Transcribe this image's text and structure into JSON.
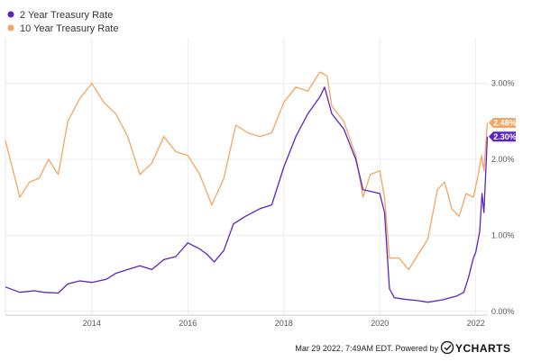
{
  "chart_data": {
    "type": "line",
    "legend_position": "top-left",
    "grid": true,
    "xlim": [
      2012.2,
      2022.25
    ],
    "ylim": [
      -0.05,
      3.6
    ],
    "x_ticks": [
      2014,
      2016,
      2018,
      2020,
      2022
    ],
    "x_tick_labels": [
      "2014",
      "2016",
      "2018",
      "2020",
      "2022"
    ],
    "y_ticks": [
      0,
      1,
      2,
      3
    ],
    "y_tick_labels": [
      "0.00%",
      "1.00%",
      "2.00%",
      "3.00%"
    ],
    "series": [
      {
        "name": "2 Year Treasury Rate",
        "color": "#5b24c0",
        "end_label": "2.30%",
        "points": [
          [
            2012.2,
            0.32
          ],
          [
            2012.5,
            0.25
          ],
          [
            2012.8,
            0.27
          ],
          [
            2013.0,
            0.25
          ],
          [
            2013.3,
            0.24
          ],
          [
            2013.5,
            0.36
          ],
          [
            2013.75,
            0.4
          ],
          [
            2014.0,
            0.38
          ],
          [
            2014.3,
            0.42
          ],
          [
            2014.5,
            0.5
          ],
          [
            2014.75,
            0.55
          ],
          [
            2015.0,
            0.6
          ],
          [
            2015.25,
            0.55
          ],
          [
            2015.5,
            0.68
          ],
          [
            2015.75,
            0.72
          ],
          [
            2016.0,
            0.9
          ],
          [
            2016.25,
            0.82
          ],
          [
            2016.4,
            0.75
          ],
          [
            2016.55,
            0.65
          ],
          [
            2016.75,
            0.8
          ],
          [
            2016.95,
            1.15
          ],
          [
            2017.2,
            1.25
          ],
          [
            2017.5,
            1.35
          ],
          [
            2017.75,
            1.4
          ],
          [
            2018.0,
            1.9
          ],
          [
            2018.25,
            2.3
          ],
          [
            2018.5,
            2.6
          ],
          [
            2018.75,
            2.82
          ],
          [
            2018.85,
            2.95
          ],
          [
            2019.0,
            2.6
          ],
          [
            2019.25,
            2.4
          ],
          [
            2019.5,
            2.0
          ],
          [
            2019.65,
            1.6
          ],
          [
            2019.8,
            1.58
          ],
          [
            2020.0,
            1.55
          ],
          [
            2020.1,
            1.3
          ],
          [
            2020.2,
            0.3
          ],
          [
            2020.3,
            0.18
          ],
          [
            2020.5,
            0.16
          ],
          [
            2020.8,
            0.14
          ],
          [
            2021.0,
            0.12
          ],
          [
            2021.3,
            0.15
          ],
          [
            2021.6,
            0.2
          ],
          [
            2021.75,
            0.25
          ],
          [
            2021.85,
            0.45
          ],
          [
            2021.95,
            0.7
          ],
          [
            2022.0,
            0.78
          ],
          [
            2022.08,
            1.05
          ],
          [
            2022.13,
            1.55
          ],
          [
            2022.17,
            1.3
          ],
          [
            2022.24,
            2.3
          ]
        ]
      },
      {
        "name": "10 Year Treasury Rate",
        "color": "#f4a561",
        "end_label": "2.48%",
        "points": [
          [
            2012.2,
            2.25
          ],
          [
            2012.3,
            2.0
          ],
          [
            2012.5,
            1.5
          ],
          [
            2012.7,
            1.7
          ],
          [
            2012.9,
            1.75
          ],
          [
            2013.1,
            2.0
          ],
          [
            2013.3,
            1.8
          ],
          [
            2013.5,
            2.5
          ],
          [
            2013.75,
            2.8
          ],
          [
            2014.0,
            3.0
          ],
          [
            2014.25,
            2.75
          ],
          [
            2014.5,
            2.6
          ],
          [
            2014.75,
            2.3
          ],
          [
            2015.0,
            1.8
          ],
          [
            2015.25,
            1.95
          ],
          [
            2015.5,
            2.3
          ],
          [
            2015.75,
            2.1
          ],
          [
            2016.0,
            2.05
          ],
          [
            2016.25,
            1.8
          ],
          [
            2016.5,
            1.4
          ],
          [
            2016.75,
            1.75
          ],
          [
            2017.0,
            2.45
          ],
          [
            2017.25,
            2.35
          ],
          [
            2017.5,
            2.3
          ],
          [
            2017.75,
            2.35
          ],
          [
            2018.0,
            2.75
          ],
          [
            2018.25,
            2.95
          ],
          [
            2018.5,
            2.9
          ],
          [
            2018.75,
            3.15
          ],
          [
            2018.9,
            3.1
          ],
          [
            2019.0,
            2.7
          ],
          [
            2019.25,
            2.5
          ],
          [
            2019.5,
            2.05
          ],
          [
            2019.65,
            1.5
          ],
          [
            2019.8,
            1.8
          ],
          [
            2020.0,
            1.85
          ],
          [
            2020.1,
            1.5
          ],
          [
            2020.2,
            0.7
          ],
          [
            2020.4,
            0.7
          ],
          [
            2020.6,
            0.55
          ],
          [
            2020.8,
            0.75
          ],
          [
            2021.0,
            0.95
          ],
          [
            2021.2,
            1.6
          ],
          [
            2021.35,
            1.7
          ],
          [
            2021.5,
            1.35
          ],
          [
            2021.65,
            1.25
          ],
          [
            2021.8,
            1.55
          ],
          [
            2021.95,
            1.5
          ],
          [
            2022.05,
            1.8
          ],
          [
            2022.12,
            2.05
          ],
          [
            2022.17,
            1.85
          ],
          [
            2022.24,
            2.48
          ]
        ]
      }
    ]
  },
  "footer": {
    "timestamp": "Mar 29 2022, 7:49AM EDT.",
    "powered_by": "Powered by",
    "brand": "YCHARTS"
  }
}
